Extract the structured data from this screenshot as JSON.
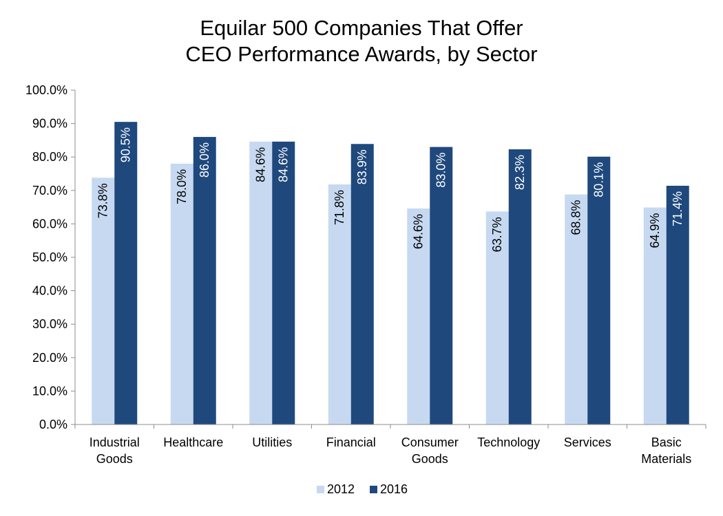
{
  "chart_data": {
    "type": "bar",
    "title": [
      "Equilar 500 Companies That Offer",
      "CEO Performance Awards, by Sector"
    ],
    "xlabel": "",
    "ylabel": "",
    "ylim": [
      0,
      100
    ],
    "ytick_step": 10,
    "ytick_format": "percent_1dp",
    "grid": false,
    "legend_position": "bottom",
    "categories": [
      [
        "Industrial",
        "Goods"
      ],
      [
        "Healthcare"
      ],
      [
        "Utilities"
      ],
      [
        "Financial"
      ],
      [
        "Consumer",
        "Goods"
      ],
      [
        "Technology"
      ],
      [
        "Services"
      ],
      [
        "Basic",
        "Materials"
      ]
    ],
    "series": [
      {
        "name": "2012",
        "color": "#c6d9f1",
        "values": [
          73.8,
          78.0,
          84.6,
          71.8,
          64.6,
          63.7,
          68.8,
          64.9
        ],
        "labels": [
          "73.8%",
          "78.0%",
          "84.6%",
          "71.8%",
          "64.6%",
          "63.7%",
          "68.8%",
          "64.9%"
        ],
        "label_color": "#000000"
      },
      {
        "name": "2016",
        "color": "#1f497d",
        "values": [
          90.5,
          86.0,
          84.6,
          83.9,
          83.0,
          82.3,
          80.1,
          71.4
        ],
        "labels": [
          "90.5%",
          "86.0%",
          "84.6%",
          "83.9%",
          "83.0%",
          "82.3%",
          "80.1%",
          "71.4%"
        ],
        "label_color": "#ffffff"
      }
    ]
  }
}
